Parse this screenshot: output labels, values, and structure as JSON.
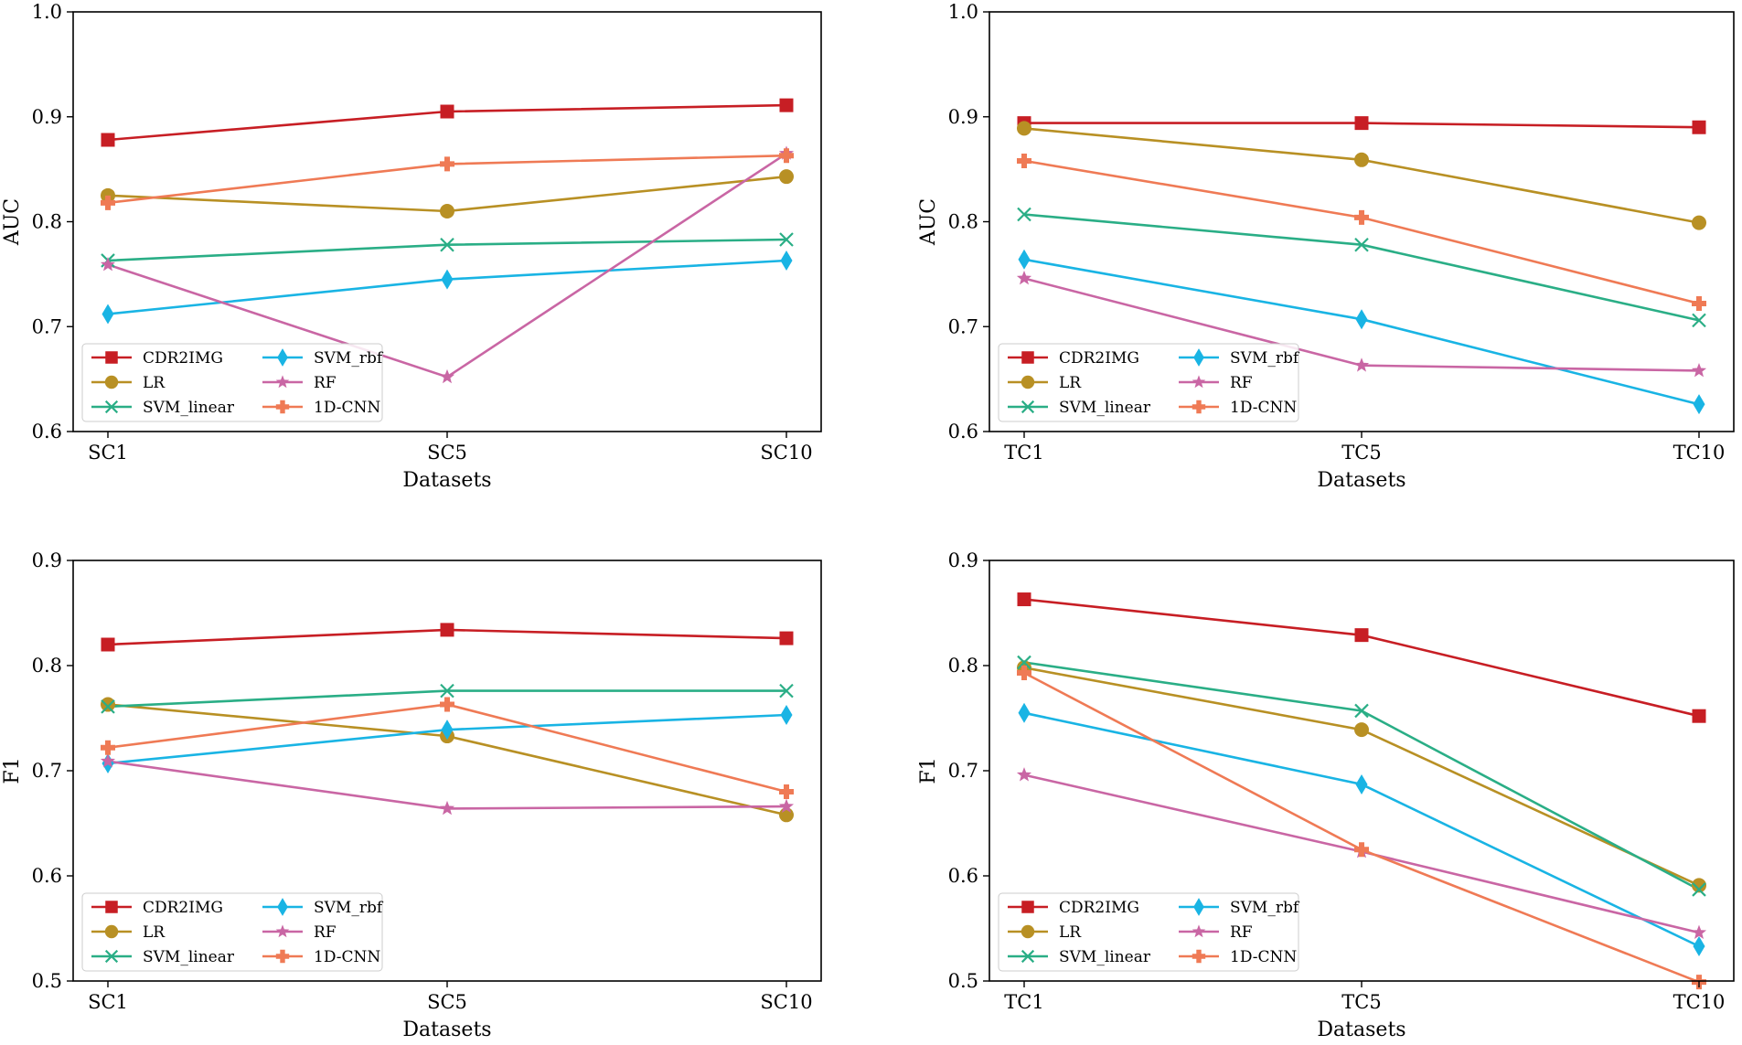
{
  "colors": {
    "CDR2IMG": "#c71e24",
    "LR": "#b89024",
    "SVM_linear": "#2aae86",
    "SVM_rbf": "#19b4e4",
    "RF": "#c966a4",
    "1D-CNN": "#ef7a55"
  },
  "chart_data": [
    {
      "type": "line",
      "xlabel": "Datasets",
      "ylabel": "AUC",
      "categories": [
        "SC1",
        "SC5",
        "SC10"
      ],
      "ylim": [
        0.6,
        1.0
      ],
      "yticks": [
        "0.6",
        "0.7",
        "0.8",
        "0.9",
        "1.0"
      ],
      "legend_position": "lower-left",
      "series": [
        {
          "name": "CDR2IMG",
          "marker": "square",
          "values": [
            0.878,
            0.905,
            0.911
          ]
        },
        {
          "name": "LR",
          "marker": "circle",
          "values": [
            0.825,
            0.81,
            0.843
          ]
        },
        {
          "name": "SVM_linear",
          "marker": "x",
          "values": [
            0.763,
            0.778,
            0.783
          ]
        },
        {
          "name": "SVM_rbf",
          "marker": "diamond",
          "values": [
            0.712,
            0.745,
            0.763
          ]
        },
        {
          "name": "RF",
          "marker": "star",
          "values": [
            0.759,
            0.652,
            0.865
          ]
        },
        {
          "name": "1D-CNN",
          "marker": "plus",
          "values": [
            0.818,
            0.855,
            0.863
          ]
        }
      ]
    },
    {
      "type": "line",
      "xlabel": "Datasets",
      "ylabel": "AUC",
      "categories": [
        "TC1",
        "TC5",
        "TC10"
      ],
      "ylim": [
        0.6,
        1.0
      ],
      "yticks": [
        "0.6",
        "0.7",
        "0.8",
        "0.9",
        "1.0"
      ],
      "legend_position": "lower-left",
      "series": [
        {
          "name": "CDR2IMG",
          "marker": "square",
          "values": [
            0.894,
            0.894,
            0.89
          ]
        },
        {
          "name": "LR",
          "marker": "circle",
          "values": [
            0.889,
            0.859,
            0.799
          ]
        },
        {
          "name": "SVM_linear",
          "marker": "x",
          "values": [
            0.807,
            0.778,
            0.706
          ]
        },
        {
          "name": "SVM_rbf",
          "marker": "diamond",
          "values": [
            0.764,
            0.707,
            0.626
          ]
        },
        {
          "name": "RF",
          "marker": "star",
          "values": [
            0.746,
            0.663,
            0.658
          ]
        },
        {
          "name": "1D-CNN",
          "marker": "plus",
          "values": [
            0.858,
            0.804,
            0.722
          ]
        }
      ]
    },
    {
      "type": "line",
      "xlabel": "Datasets",
      "ylabel": "F1",
      "categories": [
        "SC1",
        "SC5",
        "SC10"
      ],
      "ylim": [
        0.5,
        0.9
      ],
      "yticks": [
        "0.5",
        "0.6",
        "0.7",
        "0.8",
        "0.9"
      ],
      "legend_position": "lower-left",
      "series": [
        {
          "name": "CDR2IMG",
          "marker": "square",
          "values": [
            0.82,
            0.834,
            0.826
          ]
        },
        {
          "name": "LR",
          "marker": "circle",
          "values": [
            0.763,
            0.733,
            0.658
          ]
        },
        {
          "name": "SVM_linear",
          "marker": "x",
          "values": [
            0.761,
            0.776,
            0.776
          ]
        },
        {
          "name": "SVM_rbf",
          "marker": "diamond",
          "values": [
            0.707,
            0.739,
            0.753
          ]
        },
        {
          "name": "RF",
          "marker": "star",
          "values": [
            0.709,
            0.664,
            0.666
          ]
        },
        {
          "name": "1D-CNN",
          "marker": "plus",
          "values": [
            0.722,
            0.763,
            0.68
          ]
        }
      ]
    },
    {
      "type": "line",
      "xlabel": "Datasets",
      "ylabel": "F1",
      "categories": [
        "TC1",
        "TC5",
        "TC10"
      ],
      "ylim": [
        0.5,
        0.9
      ],
      "yticks": [
        "0.5",
        "0.6",
        "0.7",
        "0.8",
        "0.9"
      ],
      "legend_position": "lower-left",
      "series": [
        {
          "name": "CDR2IMG",
          "marker": "square",
          "values": [
            0.863,
            0.829,
            0.752
          ]
        },
        {
          "name": "LR",
          "marker": "circle",
          "values": [
            0.798,
            0.739,
            0.591
          ]
        },
        {
          "name": "SVM_linear",
          "marker": "x",
          "values": [
            0.803,
            0.757,
            0.587
          ]
        },
        {
          "name": "SVM_rbf",
          "marker": "diamond",
          "values": [
            0.755,
            0.687,
            0.533
          ]
        },
        {
          "name": "RF",
          "marker": "star",
          "values": [
            0.696,
            0.623,
            0.546
          ]
        },
        {
          "name": "1D-CNN",
          "marker": "plus",
          "values": [
            0.793,
            0.625,
            0.499
          ]
        }
      ]
    }
  ]
}
